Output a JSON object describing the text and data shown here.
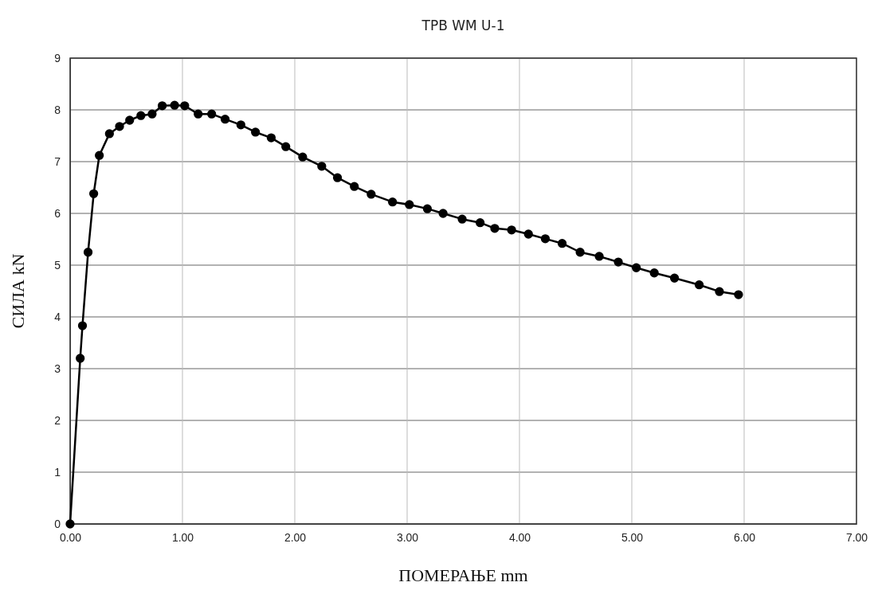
{
  "chart_data": {
    "type": "line",
    "title": "TPB WM  U-1",
    "xlabel": "ПОМЕРАЊЕ mm",
    "ylabel": "СИЛА kN",
    "xlim": [
      0,
      7
    ],
    "ylim": [
      0,
      9
    ],
    "xticks": [
      {
        "value": 0,
        "label": "0.00"
      },
      {
        "value": 1,
        "label": "1.00"
      },
      {
        "value": 2,
        "label": "2.00"
      },
      {
        "value": 3,
        "label": "3.00"
      },
      {
        "value": 4,
        "label": "4.00"
      },
      {
        "value": 5,
        "label": "5.00"
      },
      {
        "value": 6,
        "label": "6.00"
      },
      {
        "value": 7,
        "label": "7.00"
      }
    ],
    "yticks": [
      0,
      1,
      2,
      3,
      4,
      5,
      6,
      7,
      8,
      9
    ],
    "grid": true,
    "marker": "circle",
    "line_style": "solid",
    "series": [
      {
        "color": "#000000",
        "x": [
          0,
          0.09,
          0.11,
          0.16,
          0.21,
          0.26,
          0.35,
          0.44,
          0.53,
          0.63,
          0.73,
          0.82,
          0.93,
          1.02,
          1.14,
          1.26,
          1.38,
          1.52,
          1.65,
          1.79,
          1.92,
          2.07,
          2.24,
          2.38,
          2.53,
          2.68,
          2.87,
          3.02,
          3.18,
          3.32,
          3.49,
          3.65,
          3.78,
          3.93,
          4.08,
          4.23,
          4.38,
          4.54,
          4.71,
          4.88,
          5.04,
          5.2,
          5.38,
          5.6,
          5.78,
          5.95
        ],
        "values": [
          0,
          3.2,
          3.83,
          5.25,
          6.38,
          7.12,
          7.54,
          7.68,
          7.8,
          7.89,
          7.92,
          8.08,
          8.09,
          8.08,
          7.92,
          7.92,
          7.82,
          7.71,
          7.57,
          7.46,
          7.29,
          7.09,
          6.91,
          6.69,
          6.52,
          6.37,
          6.22,
          6.17,
          6.09,
          6.0,
          5.89,
          5.82,
          5.71,
          5.68,
          5.6,
          5.51,
          5.42,
          5.25,
          5.17,
          5.06,
          4.95,
          4.85,
          4.75,
          4.62,
          4.49,
          4.43
        ]
      }
    ]
  }
}
